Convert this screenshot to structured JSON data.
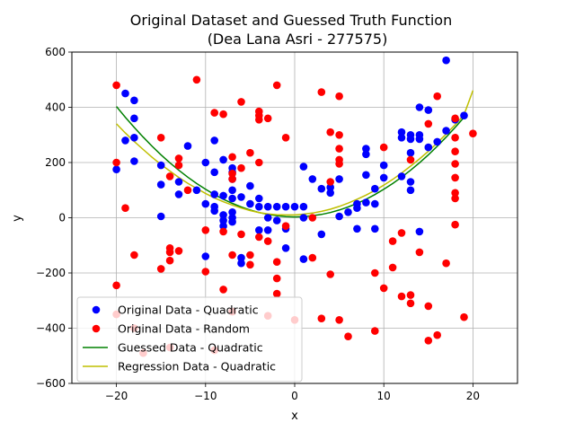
{
  "chart_data": {
    "type": "scatter",
    "title": "Original Dataset and Guessed Truth Function",
    "subtitle": "(Dea Lana Asri - 277575)",
    "xlabel": "x",
    "ylabel": "y",
    "xlim": [
      -25,
      25
    ],
    "ylim": [
      -600,
      600
    ],
    "xticks": [
      -20,
      -10,
      0,
      10,
      20
    ],
    "yticks": [
      -600,
      -400,
      -200,
      0,
      200,
      400,
      600
    ],
    "xtick_labels": [
      "−20",
      "−10",
      "0",
      "10",
      "20"
    ],
    "ytick_labels": [
      "−600",
      "−400",
      "−200",
      "0",
      "200",
      "400",
      "600"
    ],
    "grid": true,
    "legend_position": "lower-left",
    "series": [
      {
        "name": "Original Data - Quadratic",
        "kind": "scatter",
        "color": "#0000ff",
        "points": [
          [
            -20,
            175
          ],
          [
            -19,
            450
          ],
          [
            -19,
            280
          ],
          [
            -18,
            425
          ],
          [
            -18,
            360
          ],
          [
            -18,
            290
          ],
          [
            -18,
            205
          ],
          [
            -15,
            190
          ],
          [
            -15,
            120
          ],
          [
            -15,
            5
          ],
          [
            -13,
            130
          ],
          [
            -13,
            85
          ],
          [
            -12,
            260
          ],
          [
            -11,
            100
          ],
          [
            -10,
            200
          ],
          [
            -10,
            50
          ],
          [
            -10,
            -140
          ],
          [
            -9,
            280
          ],
          [
            -9,
            165
          ],
          [
            -9,
            85
          ],
          [
            -9,
            40
          ],
          [
            -9,
            25
          ],
          [
            -8,
            210
          ],
          [
            -8,
            80
          ],
          [
            -8,
            10
          ],
          [
            -8,
            -10
          ],
          [
            -8,
            -30
          ],
          [
            -7,
            180
          ],
          [
            -7,
            165
          ],
          [
            -7,
            140
          ],
          [
            -7,
            100
          ],
          [
            -7,
            70
          ],
          [
            -7,
            20
          ],
          [
            -7,
            0
          ],
          [
            -7,
            -15
          ],
          [
            -6,
            75
          ],
          [
            -6,
            -145
          ],
          [
            -6,
            -165
          ],
          [
            -5,
            115
          ],
          [
            -5,
            50
          ],
          [
            -4,
            70
          ],
          [
            -4,
            40
          ],
          [
            -4,
            -45
          ],
          [
            -3,
            40
          ],
          [
            -3,
            0
          ],
          [
            -3,
            -45
          ],
          [
            -2,
            40
          ],
          [
            -2,
            -10
          ],
          [
            -1,
            40
          ],
          [
            -1,
            -40
          ],
          [
            -1,
            -110
          ],
          [
            0,
            40
          ],
          [
            1,
            185
          ],
          [
            1,
            40
          ],
          [
            1,
            0
          ],
          [
            1,
            -150
          ],
          [
            2,
            140
          ],
          [
            3,
            105
          ],
          [
            3,
            -60
          ],
          [
            4,
            110
          ],
          [
            4,
            90
          ],
          [
            5,
            140
          ],
          [
            5,
            5
          ],
          [
            6,
            20
          ],
          [
            7,
            50
          ],
          [
            7,
            35
          ],
          [
            7,
            -40
          ],
          [
            8,
            250
          ],
          [
            8,
            230
          ],
          [
            8,
            155
          ],
          [
            8,
            55
          ],
          [
            9,
            105
          ],
          [
            9,
            50
          ],
          [
            9,
            -40
          ],
          [
            10,
            190
          ],
          [
            10,
            145
          ],
          [
            12,
            310
          ],
          [
            12,
            290
          ],
          [
            12,
            150
          ],
          [
            13,
            300
          ],
          [
            13,
            285
          ],
          [
            13,
            235
          ],
          [
            13,
            130
          ],
          [
            13,
            100
          ],
          [
            14,
            400
          ],
          [
            14,
            300
          ],
          [
            14,
            285
          ],
          [
            14,
            -50
          ],
          [
            15,
            390
          ],
          [
            15,
            255
          ],
          [
            16,
            275
          ],
          [
            17,
            570
          ],
          [
            17,
            315
          ],
          [
            18,
            355
          ],
          [
            19,
            370
          ]
        ]
      },
      {
        "name": "Original Data - Random",
        "kind": "scatter",
        "color": "#ff0000",
        "points": [
          [
            -20,
            480
          ],
          [
            -20,
            200
          ],
          [
            -20,
            -245
          ],
          [
            -20,
            -350
          ],
          [
            -19,
            35
          ],
          [
            -18,
            -135
          ],
          [
            -18,
            -400
          ],
          [
            -17,
            -490
          ],
          [
            -15,
            290
          ],
          [
            -15,
            -185
          ],
          [
            -14,
            150
          ],
          [
            -14,
            -110
          ],
          [
            -14,
            -125
          ],
          [
            -14,
            -155
          ],
          [
            -14,
            -470
          ],
          [
            -13,
            215
          ],
          [
            -13,
            190
          ],
          [
            -13,
            -120
          ],
          [
            -12,
            100
          ],
          [
            -11,
            500
          ],
          [
            -10,
            -45
          ],
          [
            -10,
            -195
          ],
          [
            -9,
            380
          ],
          [
            -9,
            -480
          ],
          [
            -8,
            375
          ],
          [
            -8,
            -50
          ],
          [
            -8,
            -260
          ],
          [
            -7,
            220
          ],
          [
            -7,
            160
          ],
          [
            -7,
            140
          ],
          [
            -7,
            -135
          ],
          [
            -7,
            -340
          ],
          [
            -6,
            420
          ],
          [
            -6,
            180
          ],
          [
            -6,
            -60
          ],
          [
            -5,
            235
          ],
          [
            -5,
            -135
          ],
          [
            -5,
            -170
          ],
          [
            -4,
            385
          ],
          [
            -4,
            370
          ],
          [
            -4,
            355
          ],
          [
            -4,
            200
          ],
          [
            -4,
            -70
          ],
          [
            -3,
            360
          ],
          [
            -3,
            -85
          ],
          [
            -3,
            -355
          ],
          [
            -2,
            480
          ],
          [
            -2,
            -160
          ],
          [
            -2,
            -220
          ],
          [
            -2,
            -275
          ],
          [
            -1,
            290
          ],
          [
            -1,
            -30
          ],
          [
            0,
            -370
          ],
          [
            2,
            -145
          ],
          [
            2,
            0
          ],
          [
            3,
            455
          ],
          [
            3,
            -365
          ],
          [
            4,
            310
          ],
          [
            4,
            130
          ],
          [
            4,
            -205
          ],
          [
            5,
            440
          ],
          [
            5,
            300
          ],
          [
            5,
            250
          ],
          [
            5,
            210
          ],
          [
            5,
            195
          ],
          [
            5,
            -370
          ],
          [
            6,
            -430
          ],
          [
            9,
            -200
          ],
          [
            9,
            -410
          ],
          [
            10,
            255
          ],
          [
            10,
            -255
          ],
          [
            11,
            -85
          ],
          [
            11,
            -180
          ],
          [
            12,
            -55
          ],
          [
            12,
            -285
          ],
          [
            13,
            210
          ],
          [
            13,
            -280
          ],
          [
            13,
            -310
          ],
          [
            14,
            -125
          ],
          [
            15,
            340
          ],
          [
            15,
            -320
          ],
          [
            15,
            -445
          ],
          [
            16,
            440
          ],
          [
            16,
            -425
          ],
          [
            17,
            -165
          ],
          [
            18,
            360
          ],
          [
            18,
            290
          ],
          [
            18,
            240
          ],
          [
            18,
            195
          ],
          [
            18,
            145
          ],
          [
            18,
            90
          ],
          [
            18,
            70
          ],
          [
            18,
            -25
          ],
          [
            19,
            -360
          ],
          [
            20,
            305
          ]
        ]
      },
      {
        "name": "Guessed Data - Quadratic",
        "kind": "line",
        "color": "#008000",
        "x": [
          -20,
          -19,
          -18,
          -17,
          -16,
          -15,
          -14,
          -13,
          -12,
          -11,
          -10,
          -9,
          -8,
          -7,
          -6,
          -5,
          -4,
          -3,
          -2,
          -1,
          0,
          1,
          2,
          3,
          4,
          5,
          6,
          7,
          8,
          9,
          10,
          11,
          12,
          13,
          14,
          15,
          16,
          17,
          18,
          19
        ],
        "y": [
          403,
          364,
          327,
          292,
          259,
          228,
          199,
          172,
          147,
          124,
          103,
          84,
          67,
          52,
          39,
          28,
          19,
          12,
          7,
          4,
          3,
          4,
          7,
          12,
          19,
          28,
          39,
          52,
          67,
          84,
          103,
          124,
          147,
          172,
          199,
          228,
          259,
          292,
          327,
          364
        ]
      },
      {
        "name": "Regression Data - Quadratic",
        "kind": "line",
        "color": "#bfbf00",
        "x": [
          -20,
          -19,
          -18,
          -17,
          -16,
          -15,
          -14,
          -13,
          -12,
          -11,
          -10,
          -9,
          -8,
          -7,
          -6,
          -5,
          -4,
          -3,
          -2,
          -1,
          0,
          1,
          2,
          3,
          4,
          5,
          6,
          7,
          8,
          9,
          10,
          11,
          12,
          13,
          14,
          15,
          16,
          17,
          18,
          19,
          20
        ],
        "y": [
          340,
          307,
          276,
          247,
          219,
          193,
          169,
          146,
          125,
          106,
          88,
          72,
          58,
          46,
          35,
          26,
          19,
          14,
          11,
          10,
          10,
          13,
          17,
          23,
          31,
          41,
          53,
          67,
          82,
          99,
          118,
          139,
          162,
          187,
          213,
          241,
          271,
          303,
          337,
          373,
          461
        ]
      }
    ]
  }
}
